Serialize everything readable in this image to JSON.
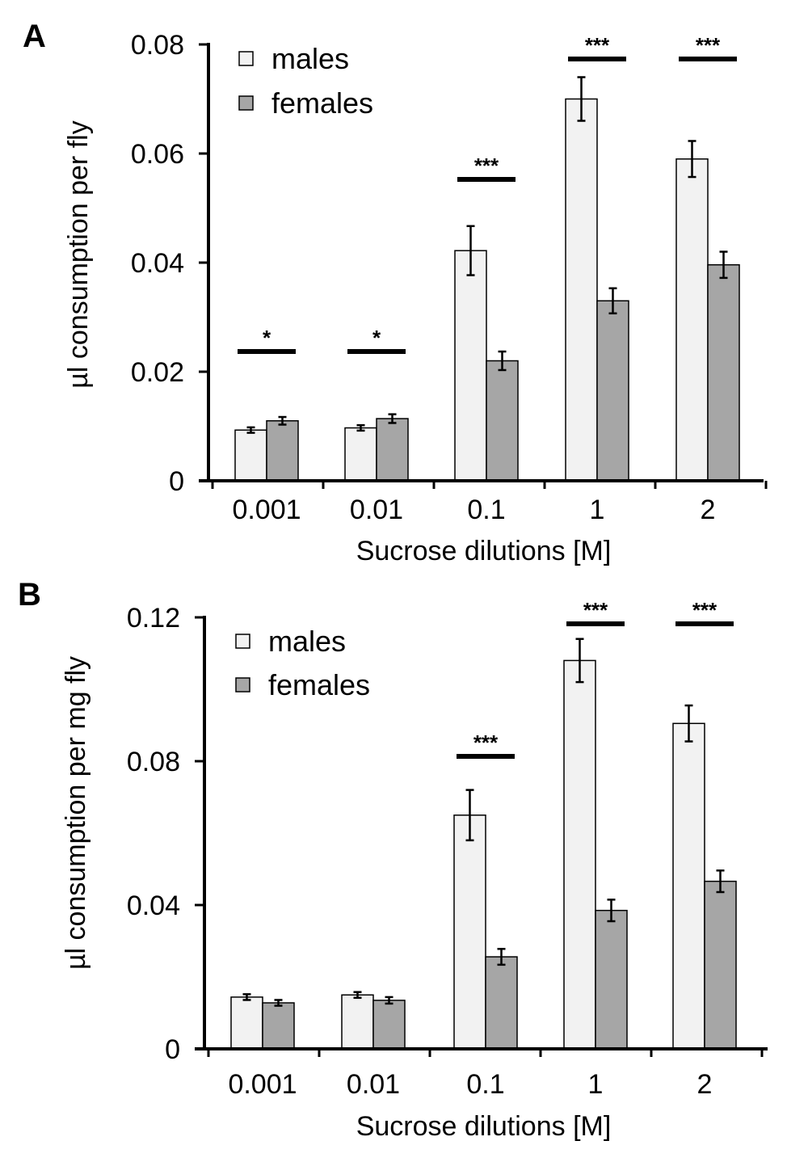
{
  "colors": {
    "males": "#f2f2f2",
    "females": "#a6a6a6",
    "axis": "#000000"
  },
  "chart_data": [
    {
      "panel": "A",
      "type": "bar",
      "categories": [
        "0.001",
        "0.01",
        "0.1",
        "1",
        "2"
      ],
      "xlabel": "Sucrose dilutions [M]",
      "ylabel": "µl consumption per fly",
      "ylim": [
        0,
        0.08
      ],
      "yticks": [
        "0",
        "0.02",
        "0.04",
        "0.06",
        "0.08"
      ],
      "legend_position": "top-left",
      "series": [
        {
          "name": "males",
          "values": [
            0.0093,
            0.0097,
            0.0422,
            0.07,
            0.059
          ],
          "errors": [
            0.0005,
            0.0005,
            0.0045,
            0.004,
            0.0033
          ]
        },
        {
          "name": "females",
          "values": [
            0.011,
            0.0114,
            0.022,
            0.033,
            0.0396
          ],
          "errors": [
            0.0007,
            0.0008,
            0.0017,
            0.0023,
            0.0024
          ]
        }
      ],
      "significance": [
        "*",
        "*",
        "***",
        "***",
        "***"
      ]
    },
    {
      "panel": "B",
      "type": "bar",
      "categories": [
        "0.001",
        "0.01",
        "0.1",
        "1",
        "2"
      ],
      "xlabel": "Sucrose dilutions [M]",
      "ylabel": "µl consumption per mg fly",
      "ylim": [
        0,
        0.12
      ],
      "yticks": [
        "0",
        "0.04",
        "0.08",
        "0.12"
      ],
      "legend_position": "top-left",
      "series": [
        {
          "name": "males",
          "values": [
            0.0144,
            0.015,
            0.065,
            0.108,
            0.0905
          ],
          "errors": [
            0.0008,
            0.0008,
            0.007,
            0.006,
            0.005
          ]
        },
        {
          "name": "females",
          "values": [
            0.0128,
            0.0135,
            0.0256,
            0.0385,
            0.0466
          ],
          "errors": [
            0.0008,
            0.0009,
            0.0022,
            0.003,
            0.003
          ]
        }
      ],
      "significance": [
        "",
        "",
        "***",
        "***",
        "***"
      ]
    }
  ]
}
